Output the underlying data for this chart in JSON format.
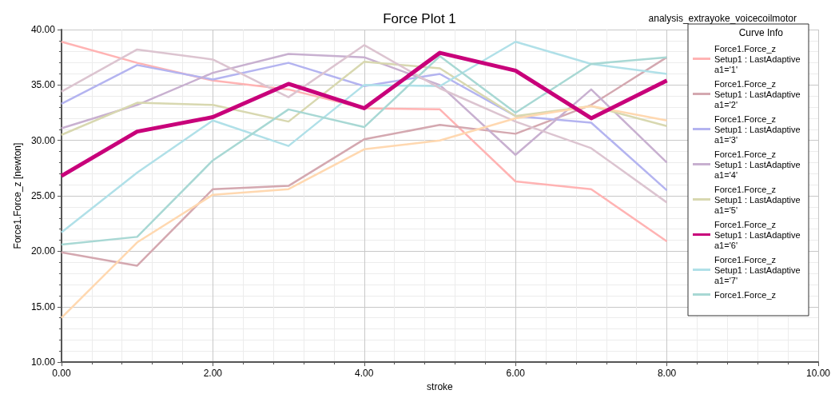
{
  "chart_data": {
    "type": "line",
    "title": "Force Plot 1",
    "subtitle": "analysis_extrayoke_voicecoilmotor",
    "xlabel": "stroke",
    "ylabel": "Force1.Force_z [newton]",
    "legend_title": "Curve Info",
    "x": [
      0,
      1,
      2,
      3,
      4,
      5,
      6,
      7,
      8
    ],
    "series": [
      {
        "name": "Force1.Force_z\nSetup1 : LastAdaptive\na1='1'",
        "color": "#ffb3b3",
        "values": [
          38.9,
          37.0,
          35.4,
          34.6,
          32.9,
          32.8,
          26.3,
          25.6,
          20.9
        ]
      },
      {
        "name": "Force1.Force_z\nSetup1 : LastAdaptive\na1='2'",
        "color": "#d4a8b0",
        "values": [
          19.9,
          18.7,
          25.6,
          25.9,
          30.1,
          31.4,
          30.6,
          33.2,
          37.5
        ]
      },
      {
        "name": "Force1.Force_z\nSetup1 : LastAdaptive\na1='3'",
        "color": "#b4b4f0",
        "values": [
          33.3,
          36.8,
          35.5,
          37.0,
          34.9,
          36.0,
          32.2,
          31.6,
          25.5
        ]
      },
      {
        "name": "Force1.Force_z\nSetup1 : LastAdaptive\na1='4'",
        "color": "#c8b0d0",
        "values": [
          31.1,
          33.2,
          36.1,
          37.8,
          37.5,
          35.0,
          28.7,
          34.6,
          28.0
        ]
      },
      {
        "name": "Force1.Force_z\nSetup1 : LastAdaptive\na1='5'",
        "color": "#d8d8b0",
        "values": [
          30.5,
          33.4,
          33.2,
          31.7,
          37.1,
          36.5,
          32.2,
          33.1,
          31.3
        ]
      },
      {
        "name": "Force1.Force_z\nSetup1 : LastAdaptive\na1='6'",
        "color": "#c8007a",
        "values": [
          26.8,
          30.8,
          32.1,
          35.1,
          32.9,
          37.9,
          36.3,
          32.0,
          35.4
        ]
      },
      {
        "name": "Force1.Force_z\nSetup1 : LastAdaptive\na1='7'",
        "color": "#b0e0e8",
        "values": [
          21.7,
          27.1,
          31.8,
          29.5,
          35.0,
          34.9,
          38.9,
          36.9,
          36.0
        ]
      },
      {
        "name": "Force1.Force_z",
        "color": "#a8d8d4",
        "values": [
          20.6,
          21.3,
          28.2,
          32.8,
          31.2,
          37.6,
          32.5,
          36.9,
          37.5
        ]
      },
      {
        "color": "#dcc4d0",
        "values": [
          34.4,
          38.2,
          37.3,
          33.9,
          38.6,
          34.7,
          31.7,
          29.3,
          24.4
        ]
      },
      {
        "color": "#ffd8b0",
        "values": [
          14.0,
          20.8,
          25.1,
          25.6,
          29.2,
          30.0,
          32.0,
          33.1,
          31.8
        ]
      }
    ],
    "xlim": [
      0,
      10
    ],
    "xticks": [
      {
        "value": 0,
        "label": "0.00"
      },
      {
        "value": 2,
        "label": "2.00"
      },
      {
        "value": 4,
        "label": "4.00"
      },
      {
        "value": 6,
        "label": "6.00"
      },
      {
        "value": 8,
        "label": "8.00"
      },
      {
        "value": 10,
        "label": "10.00"
      }
    ],
    "ylim": [
      10,
      40
    ],
    "yticks": [
      {
        "value": 10,
        "label": "10.00"
      },
      {
        "value": 15,
        "label": "15.00"
      },
      {
        "value": 20,
        "label": "20.00"
      },
      {
        "value": 25,
        "label": "25.00"
      },
      {
        "value": 30,
        "label": "30.00"
      },
      {
        "value": 35,
        "label": "35.00"
      },
      {
        "value": 40,
        "label": "40.00"
      }
    ],
    "grid": true,
    "legend": "top right",
    "marker": "none",
    "line_style": "solid"
  }
}
